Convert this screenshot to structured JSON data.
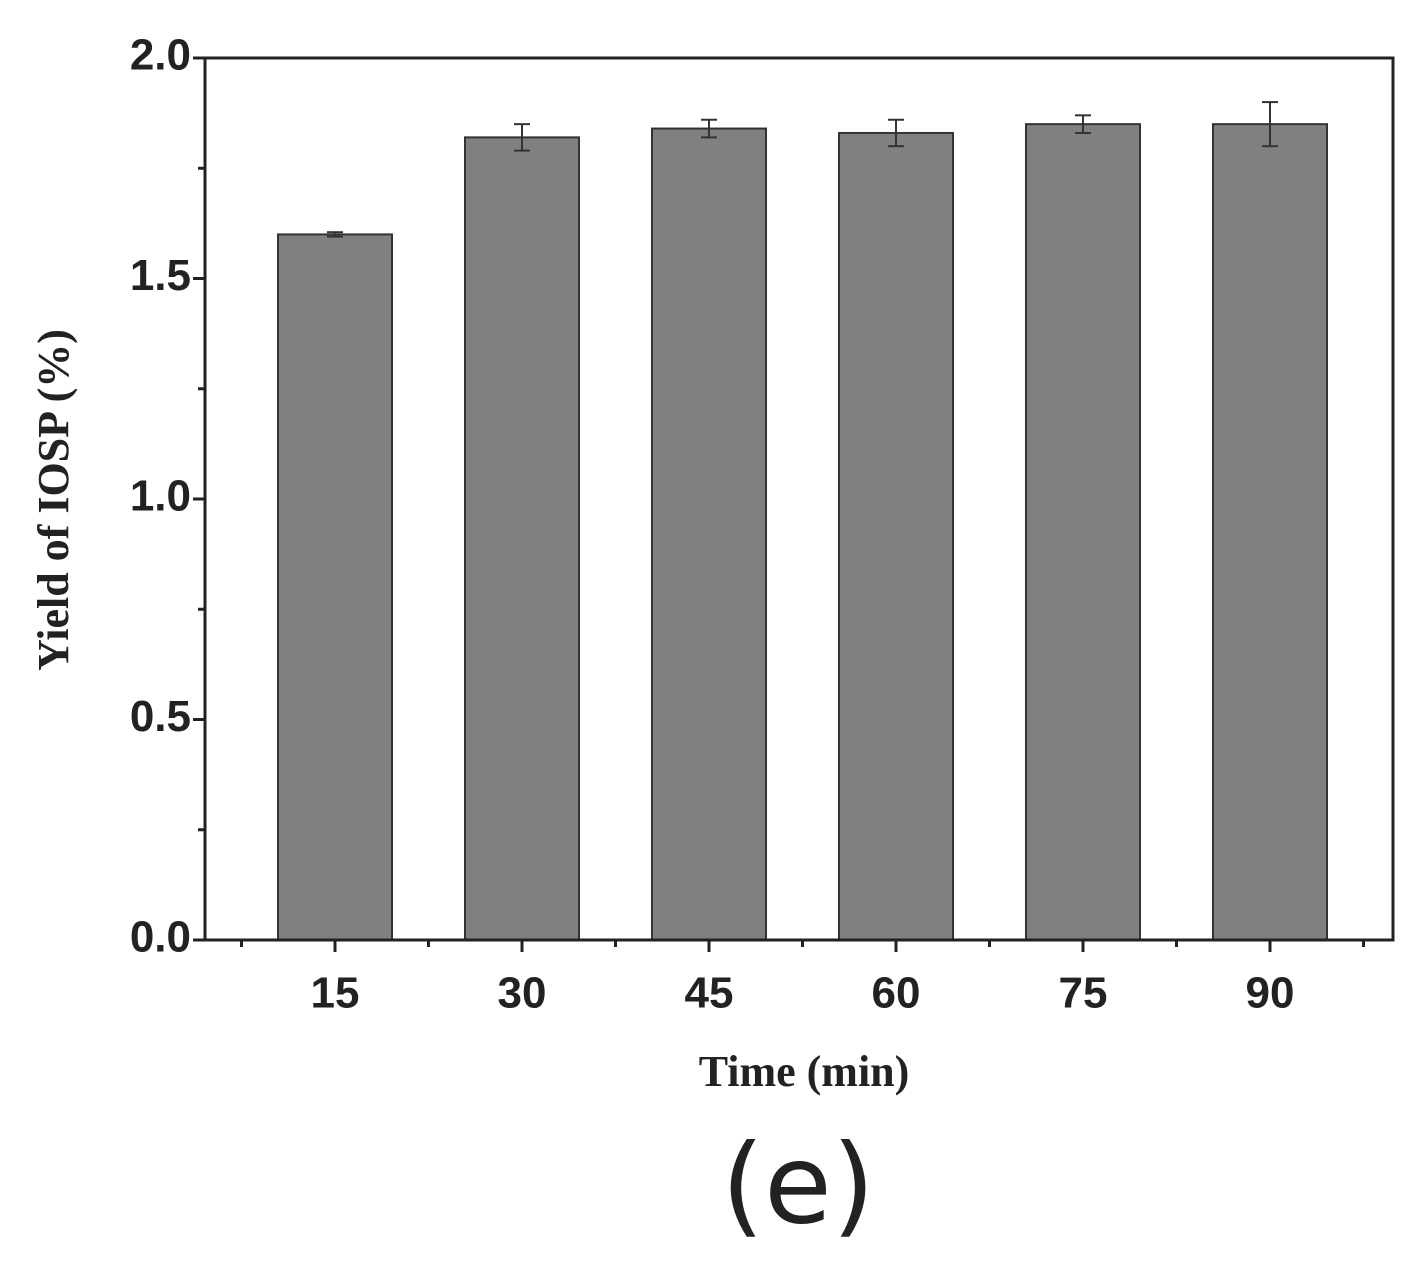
{
  "chart_data": {
    "type": "bar",
    "x_label": "Time (min)",
    "y_label": "Yield of IOSP (%)",
    "caption": "(e)",
    "categories": [
      "15",
      "30",
      "45",
      "60",
      "75",
      "90"
    ],
    "values": [
      1.6,
      1.82,
      1.84,
      1.83,
      1.85,
      1.85
    ],
    "errors": [
      0.005,
      0.03,
      0.02,
      0.03,
      0.02,
      0.05
    ],
    "color": "#808080",
    "ylim": [
      0,
      2
    ],
    "yticks": [
      {
        "value": 0,
        "label": "0.0"
      },
      0.5,
      {
        "value": 1,
        "label": "1.0"
      },
      1.5,
      {
        "value": 2,
        "label": "2.0"
      }
    ]
  }
}
